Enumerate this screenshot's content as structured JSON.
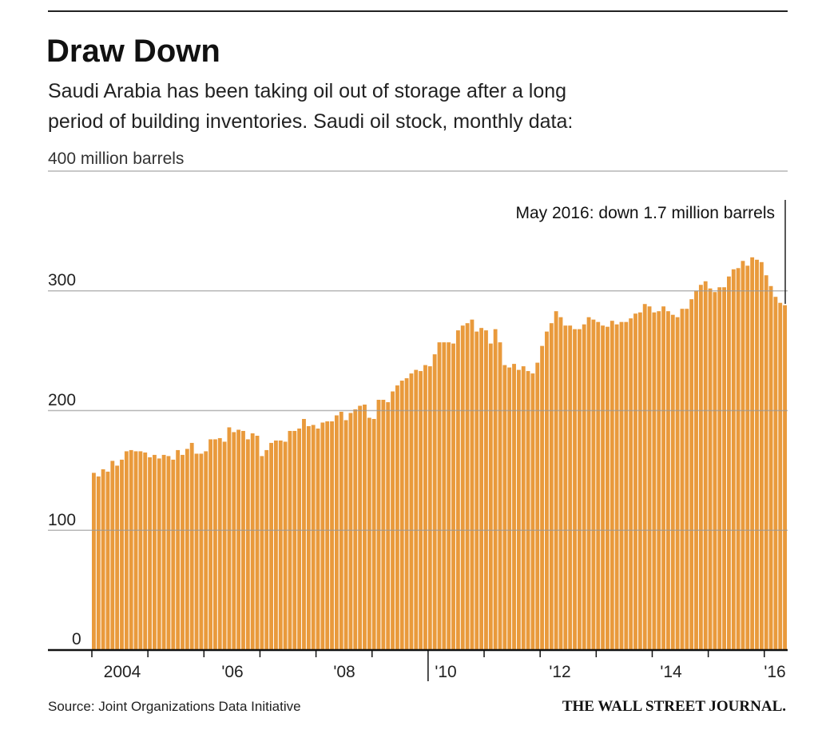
{
  "chart_data": {
    "type": "bar",
    "title": "Draw Down",
    "subtitle_lines": [
      "Saudi Arabia has been taking oil out of storage after a long",
      "period of building inventories. Saudi oil stock, monthly data:"
    ],
    "ylabel": "400 million barrels",
    "ylim": [
      0,
      400
    ],
    "yticks": [
      0,
      100,
      200,
      300,
      400
    ],
    "ytick_labels": [
      "0",
      "100",
      "200",
      "300"
    ],
    "x_start": "2004-01",
    "x_end": "2016-05",
    "frequency": "monthly",
    "xtick_labels": [
      "2004",
      "'06",
      "'08",
      "'10",
      "'12",
      "'14",
      "'16"
    ],
    "grid": true,
    "bar_color": "#e99a3c",
    "annotation": "May 2016: down 1.7 million barrels",
    "source": "Source: Joint Organizations Data Initiative",
    "publisher": "THE WALL STREET JOURNAL.",
    "values": [
      148,
      145,
      151,
      149,
      158,
      154,
      159,
      166,
      167,
      166,
      166,
      165,
      161,
      163,
      160,
      163,
      162,
      159,
      167,
      163,
      168,
      173,
      164,
      164,
      166,
      176,
      176,
      177,
      174,
      186,
      182,
      184,
      183,
      176,
      181,
      179,
      162,
      167,
      173,
      175,
      175,
      174,
      183,
      183,
      185,
      193,
      187,
      188,
      185,
      190,
      191,
      191,
      196,
      199,
      192,
      198,
      201,
      204,
      205,
      194,
      193,
      209,
      209,
      207,
      216,
      221,
      225,
      227,
      231,
      234,
      233,
      238,
      237,
      247,
      257,
      257,
      257,
      256,
      267,
      271,
      273,
      276,
      266,
      269,
      267,
      256,
      268,
      257,
      238,
      236,
      239,
      234,
      237,
      233,
      231,
      240,
      254,
      266,
      273,
      283,
      278,
      271,
      271,
      268,
      268,
      272,
      278,
      276,
      274,
      271,
      270,
      275,
      272,
      274,
      274,
      277,
      281,
      282,
      289,
      287,
      282,
      283,
      287,
      283,
      280,
      278,
      285,
      285,
      293,
      300,
      305,
      308,
      302,
      299,
      303,
      303,
      312,
      318,
      319,
      325,
      321,
      328,
      326,
      324,
      313,
      304,
      295,
      290,
      288
    ]
  }
}
